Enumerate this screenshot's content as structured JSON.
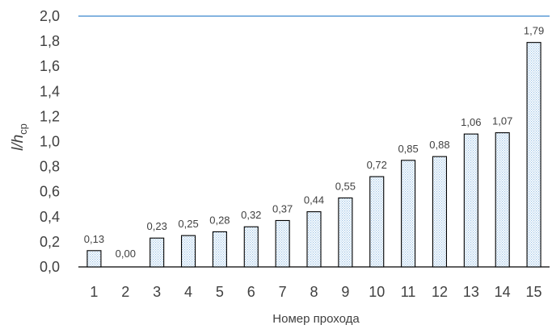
{
  "chart_data": {
    "type": "bar",
    "categories": [
      "1",
      "2",
      "3",
      "4",
      "5",
      "6",
      "7",
      "8",
      "9",
      "10",
      "11",
      "12",
      "13",
      "14",
      "15"
    ],
    "values": [
      0.13,
      0.0,
      0.23,
      0.25,
      0.28,
      0.32,
      0.37,
      0.44,
      0.55,
      0.72,
      0.85,
      0.88,
      1.06,
      1.07,
      1.79
    ],
    "data_labels": [
      "0,13",
      "0,00",
      "0,23",
      "0,25",
      "0,28",
      "0,32",
      "0,37",
      "0,44",
      "0,55",
      "0,72",
      "0,85",
      "0,88",
      "1,06",
      "1,07",
      "1,79"
    ],
    "y_ticks": [
      "0,0",
      "0,2",
      "0,4",
      "0,6",
      "0,8",
      "1,0",
      "1,2",
      "1,4",
      "1,6",
      "1,8",
      "2,0"
    ],
    "xlabel": "Номер прохода",
    "ylabel": {
      "main": "l/h",
      "subscript": "ср"
    },
    "ylim": [
      0,
      2.0
    ],
    "grid": false,
    "bar_fill": "dotted",
    "colors": {
      "bar_stroke": "#000000",
      "bar_dots": "#9dc3e6",
      "top_line": "#5b9bd5",
      "axis": "#000000",
      "text": "#404040"
    }
  }
}
